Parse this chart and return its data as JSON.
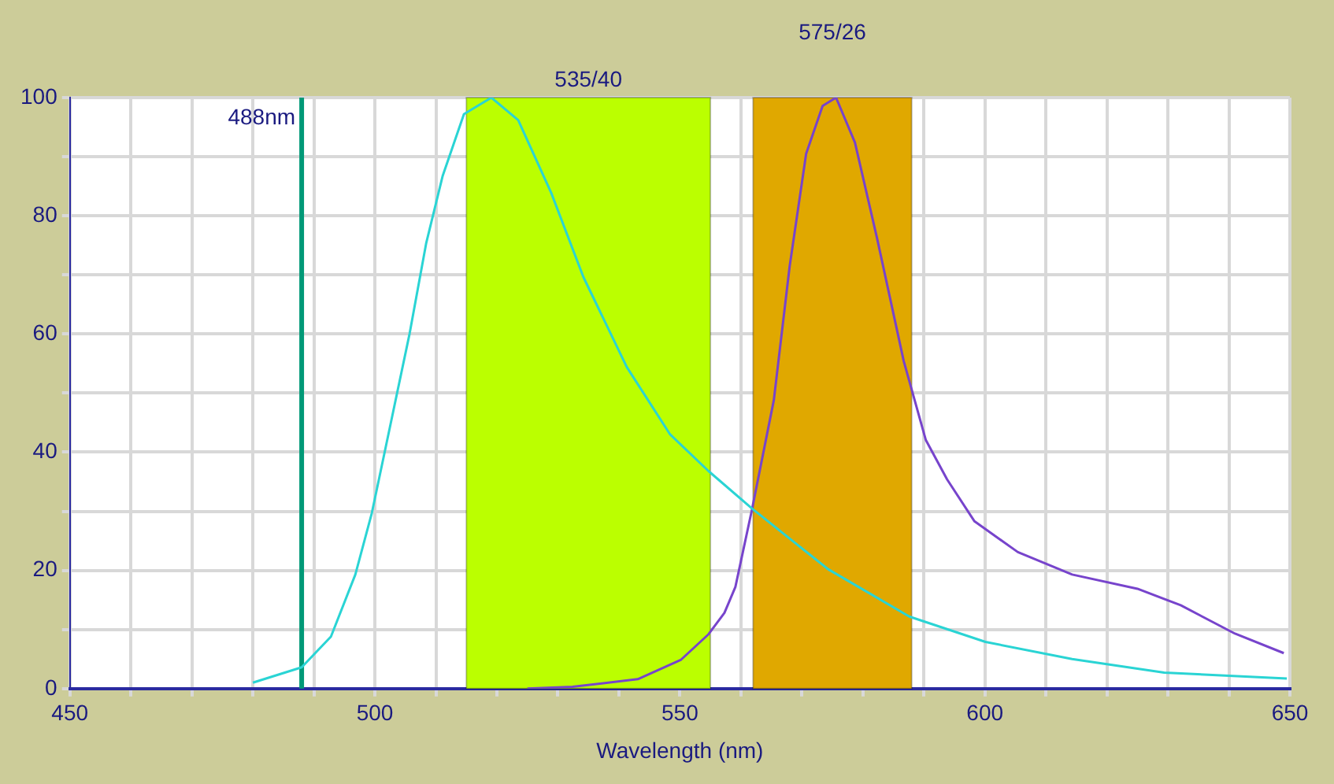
{
  "chart_data": {
    "type": "line",
    "xlabel": "Wavelength (nm)",
    "xlim": [
      450,
      650
    ],
    "xticks": [
      450,
      {
        "value": 460,
        "label": null
      },
      {
        "value": 470,
        "label": null
      },
      {
        "value": 480,
        "label": null
      },
      {
        "value": 490,
        "label": null
      },
      500,
      {
        "value": 510,
        "label": null
      },
      {
        "value": 520,
        "label": null
      },
      {
        "value": 530,
        "label": null
      },
      {
        "value": 540,
        "label": null
      },
      550,
      {
        "value": 560,
        "label": null
      },
      {
        "value": 570,
        "label": null
      },
      {
        "value": 580,
        "label": null
      },
      {
        "value": 590,
        "label": null
      },
      600,
      {
        "value": 610,
        "label": null
      },
      {
        "value": 620,
        "label": null
      },
      {
        "value": 630,
        "label": null
      },
      {
        "value": 640,
        "label": null
      },
      650
    ],
    "ylim": [
      0,
      100
    ],
    "yticks": [
      0,
      {
        "value": 10,
        "label": null
      },
      20,
      {
        "value": 30,
        "label": null
      },
      40,
      {
        "value": 50,
        "label": null
      },
      60,
      {
        "value": 70,
        "label": null
      },
      80,
      {
        "value": 90,
        "label": null
      },
      100
    ],
    "grid": true,
    "legend": false,
    "marker": "none",
    "line_style": "solid",
    "series": [
      {
        "color": "#2ad4d4",
        "x": [
          480,
          488,
          492.8,
          496.8,
          499.5,
          502.6,
          505.7,
          508.4,
          511.1,
          514.6,
          519.1,
          523.5,
          528.9,
          534.2,
          541.3,
          548.4,
          554.7,
          561.8,
          574.3,
          587.6,
          600.1,
          614.3,
          629.4,
          649.5
        ],
        "values": [
          1,
          3.6,
          8.8,
          19.3,
          29.7,
          44.9,
          60.1,
          75.3,
          86.7,
          97.2,
          100,
          96.2,
          83.9,
          69.6,
          54.4,
          43,
          36.8,
          30.5,
          20.2,
          12.2,
          7.9,
          5,
          2.7,
          1.7
        ]
      },
      {
        "color": "#7744cc",
        "x": [
          525,
          532.4,
          543.1,
          550.2,
          554.7,
          557.3,
          559.1,
          561.8,
          565.4,
          568,
          570.7,
          573.4,
          575.6,
          578.7,
          582.3,
          586.7,
          590.3,
          593.8,
          598.3,
          605.4,
          614.3,
          625,
          632.1,
          641,
          649
        ],
        "values": [
          0,
          0.3,
          1.6,
          4.9,
          9.2,
          12.8,
          17.2,
          30.2,
          48.8,
          71.5,
          90.5,
          98.6,
          100,
          92.4,
          76.3,
          55.4,
          42.1,
          35.4,
          28.3,
          23.1,
          19.3,
          16.9,
          14.1,
          9.3,
          6
        ]
      }
    ],
    "bands": [
      {
        "axis": "x",
        "from": 515,
        "to": 555,
        "label": "535/40",
        "color": "#bbff00"
      },
      {
        "axis": "x",
        "from": 562,
        "to": 588,
        "label": "575/26",
        "color": "#e0a800"
      }
    ],
    "ref_lines": [
      {
        "axis": "x",
        "value": 488,
        "label": "488nm",
        "color": "#009977",
        "line_style": "solid"
      }
    ]
  }
}
